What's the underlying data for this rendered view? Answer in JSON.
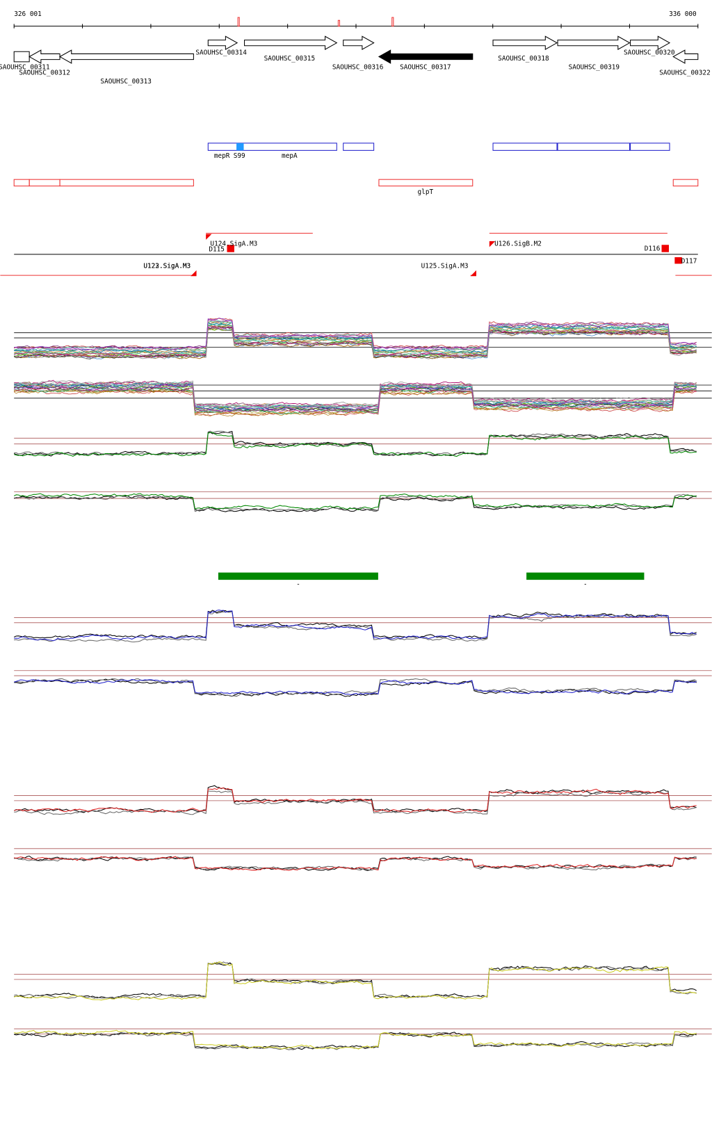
{
  "ruler": {
    "start": "326 001",
    "end": "336 000"
  },
  "genes": [
    {
      "label": "SAOUHSC_00311"
    },
    {
      "label": "SAOUHSC_00312"
    },
    {
      "label": "SAOUHSC_00313"
    },
    {
      "label": "SAOUHSC_00314"
    },
    {
      "label": "SAOUHSC_00315"
    },
    {
      "label": "SAOUHSC_00316"
    },
    {
      "label": "SAOUHSC_00317"
    },
    {
      "label": "SAOUHSC_00318"
    },
    {
      "label": "SAOUHSC_00319"
    },
    {
      "label": "SAOUHSC_00320"
    },
    {
      "label": "SAOUHSC_00322"
    }
  ],
  "features": [
    {
      "label": "mepR"
    },
    {
      "label": "S99"
    },
    {
      "label": "mepA"
    },
    {
      "label": "glpT"
    }
  ],
  "promoters": [
    {
      "label": "U124.SigA.M3"
    },
    {
      "label": "D115"
    },
    {
      "label": "U122.SigA.M3"
    },
    {
      "label": "U123.SigA.M3"
    },
    {
      "label": "U125.SigA.M3"
    },
    {
      "label": "U126.SigB.M2"
    },
    {
      "label": "D116"
    },
    {
      "label": "D117"
    }
  ],
  "bars": [
    {
      "label": "-"
    },
    {
      "label": "-"
    }
  ]
}
